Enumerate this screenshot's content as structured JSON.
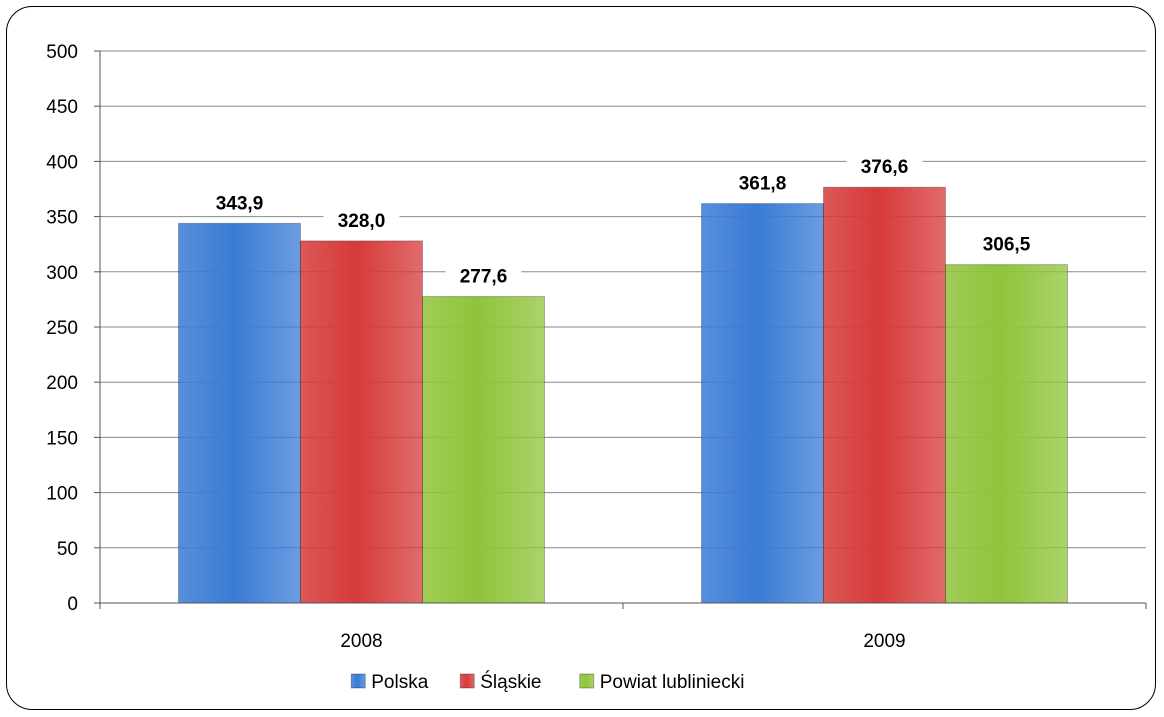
{
  "chart_data": {
    "type": "bar",
    "categories": [
      "2008",
      "2009"
    ],
    "series": [
      {
        "name": "Polska",
        "values": [
          343.9,
          361.8
        ],
        "labels": [
          "343,9",
          "361,8"
        ],
        "color": "#3a7bd5"
      },
      {
        "name": "Śląskie",
        "values": [
          328.0,
          376.6
        ],
        "labels": [
          "328,0",
          "376,6"
        ],
        "color": "#d63a3a"
      },
      {
        "name": "Powiat lubliniecki",
        "values": [
          277.6,
          306.5
        ],
        "labels": [
          "277,6",
          "306,5"
        ],
        "color": "#8fc43a"
      }
    ],
    "ylim": [
      0,
      500
    ],
    "yticks": [
      0,
      50,
      100,
      150,
      200,
      250,
      300,
      350,
      400,
      450,
      500
    ],
    "grid": true,
    "legend_position": "bottom"
  }
}
